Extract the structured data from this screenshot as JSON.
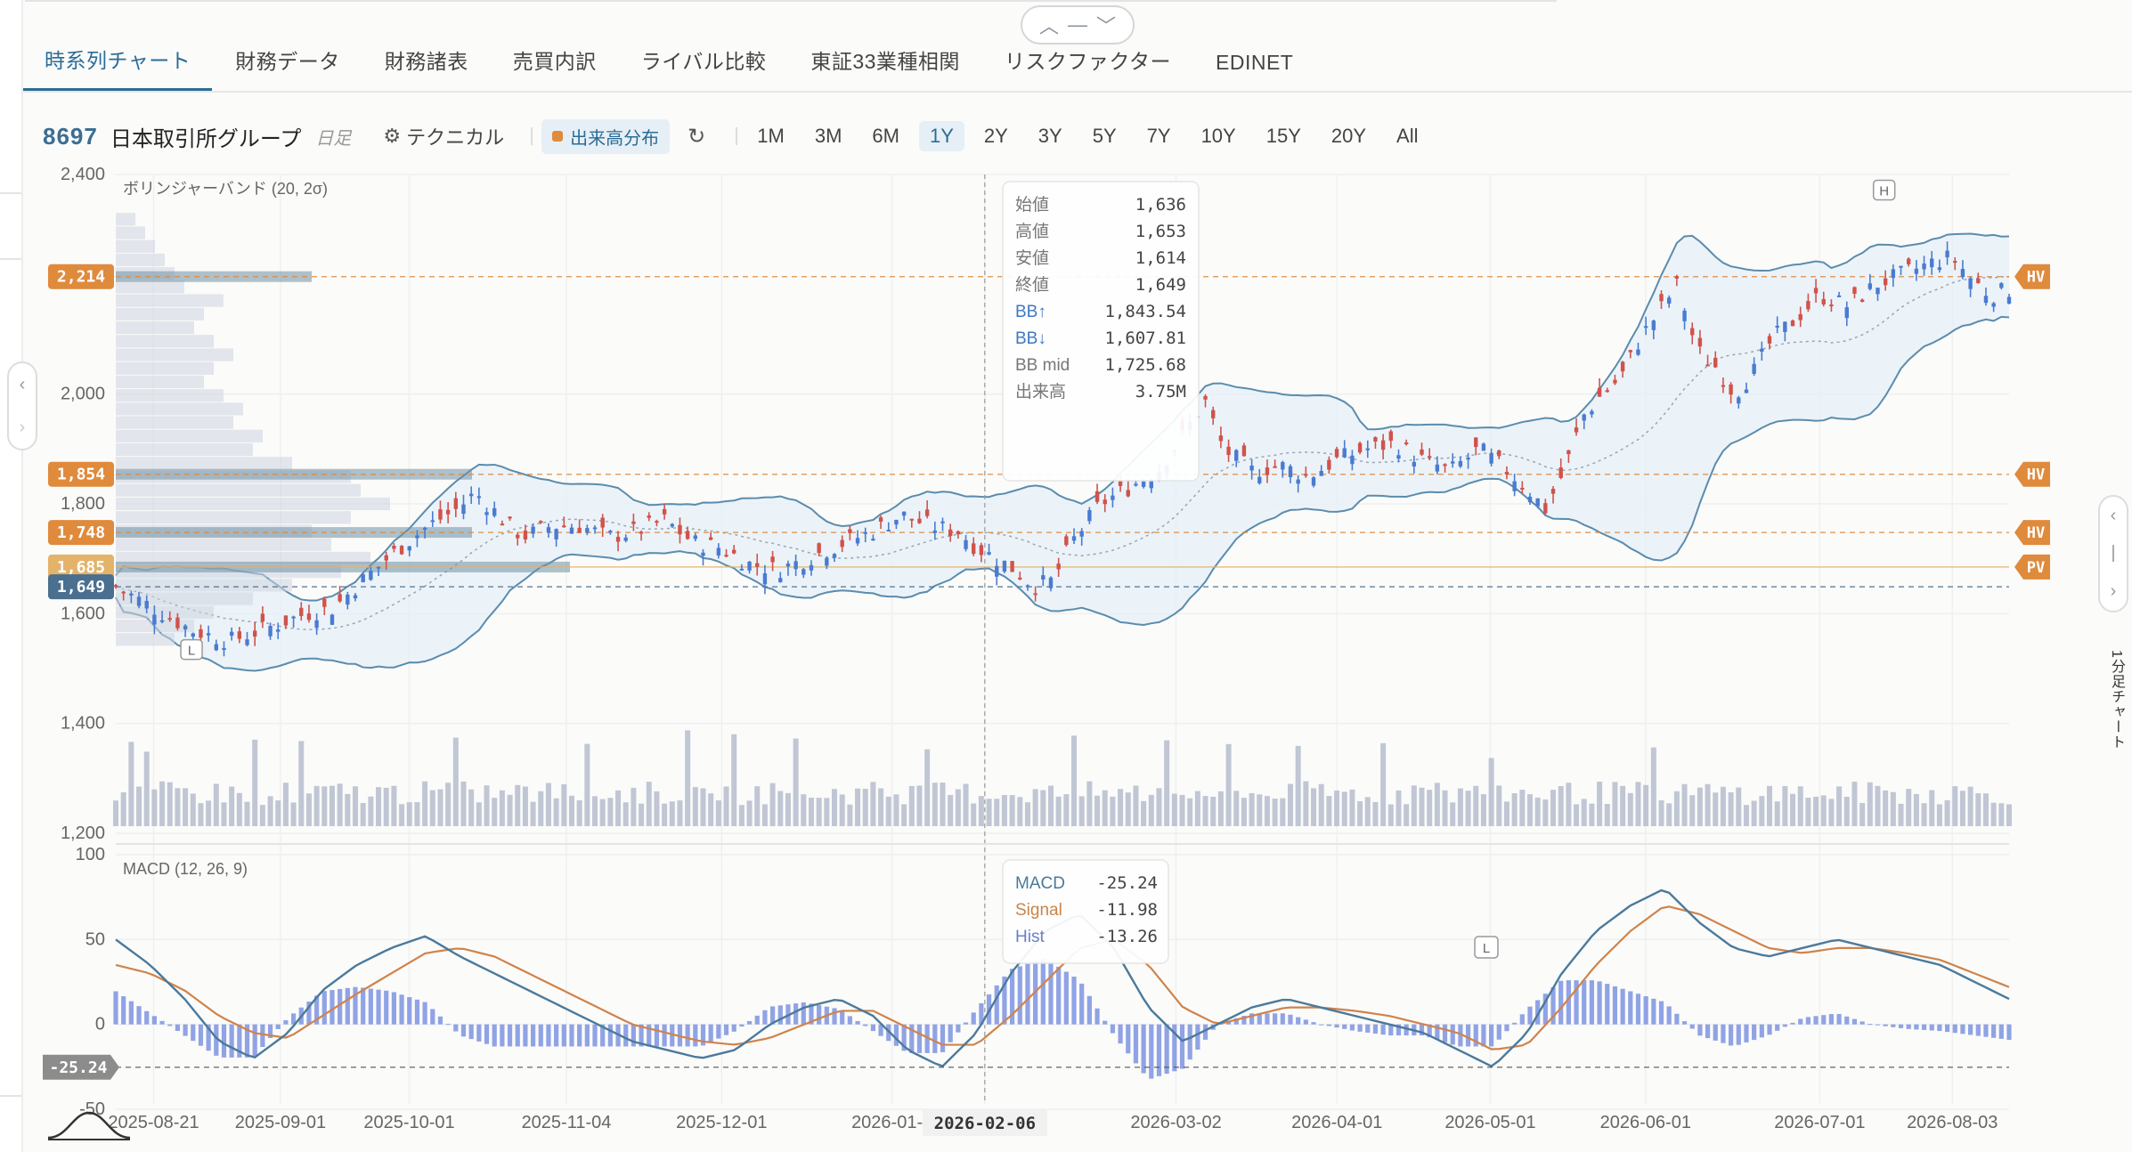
{
  "tabs": [
    {
      "label": "時系列チャート",
      "active": true
    },
    {
      "label": "財務データ",
      "active": false
    },
    {
      "label": "財務諸表",
      "active": false
    },
    {
      "label": "売買内訳",
      "active": false
    },
    {
      "label": "ライバル比較",
      "active": false
    },
    {
      "label": "東証33業種相関",
      "active": false
    },
    {
      "label": "リスクファクター",
      "active": false
    },
    {
      "label": "EDINET",
      "active": false
    }
  ],
  "toolbar": {
    "ticker_code": "8697",
    "ticker_name": "日本取引所グループ",
    "period": "日足",
    "technical_label": "テクニカル",
    "volume_profile_label": "出来高分布",
    "ranges": [
      "1M",
      "3M",
      "6M",
      "1Y",
      "2Y",
      "3Y",
      "5Y",
      "7Y",
      "10Y",
      "15Y",
      "20Y",
      "All"
    ],
    "active_range": "1Y"
  },
  "side_label": "1分足チャート",
  "icons": {
    "reset": "reset-icon",
    "gear": "gear-icon",
    "collapse": "chevron-up-icon",
    "expand": "chevron-down-icon"
  },
  "colors": {
    "accent": "#2a6c97",
    "up": "#4a7bd0",
    "down": "#d0534b",
    "band": "#5b8cad",
    "band_fill": "#e6f0f8",
    "volume": "#b5bccc",
    "macd": "#4a7a9c",
    "signal": "#d0834a",
    "hist": "#7c93e0",
    "hv": "#e08a3c",
    "current": "#4a6f8f",
    "low_tag": "#8c8c8c"
  },
  "chart_data": [
    {
      "type": "candlestick",
      "title": "ボリンジャーバンド (20, 2σ)",
      "ylim": [
        1200,
        2400
      ],
      "yticks": [
        "2,400",
        "2,000",
        "1,800",
        "1,600",
        "1,400",
        "1,200"
      ],
      "xticks": [
        "2025-08-21",
        "2025-09-01",
        "2025-10-01",
        "2025-11-04",
        "2025-12-01",
        "2026-01-0",
        "2026-02-06",
        "2026-03-02",
        "2026-04-01",
        "2026-05-01",
        "2026-06-01",
        "2026-07-01",
        "2026-08-03"
      ],
      "x_positions": [
        0.02,
        0.087,
        0.155,
        0.238,
        0.32,
        0.41,
        0.459,
        0.56,
        0.645,
        0.726,
        0.808,
        0.9,
        0.97
      ],
      "anchors": [
        [
          0.0,
          1650
        ],
        [
          0.015,
          1620
        ],
        [
          0.04,
          1570
        ],
        [
          0.06,
          1550
        ],
        [
          0.085,
          1580
        ],
        [
          0.1,
          1600
        ],
        [
          0.115,
          1610
        ],
        [
          0.13,
          1660
        ],
        [
          0.15,
          1720
        ],
        [
          0.165,
          1760
        ],
        [
          0.18,
          1790
        ],
        [
          0.19,
          1820
        ],
        [
          0.205,
          1770
        ],
        [
          0.215,
          1740
        ],
        [
          0.23,
          1760
        ],
        [
          0.245,
          1760
        ],
        [
          0.26,
          1740
        ],
        [
          0.275,
          1750
        ],
        [
          0.29,
          1770
        ],
        [
          0.305,
          1730
        ],
        [
          0.32,
          1720
        ],
        [
          0.335,
          1690
        ],
        [
          0.35,
          1680
        ],
        [
          0.365,
          1700
        ],
        [
          0.385,
          1730
        ],
        [
          0.4,
          1750
        ],
        [
          0.415,
          1780
        ],
        [
          0.43,
          1760
        ],
        [
          0.445,
          1750
        ],
        [
          0.455,
          1720
        ],
        [
          0.465,
          1700
        ],
        [
          0.475,
          1680
        ],
        [
          0.485,
          1650
        ],
        [
          0.495,
          1660
        ],
        [
          0.505,
          1730
        ],
        [
          0.52,
          1800
        ],
        [
          0.535,
          1830
        ],
        [
          0.55,
          1860
        ],
        [
          0.565,
          1930
        ],
        [
          0.575,
          1990
        ],
        [
          0.585,
          1900
        ],
        [
          0.6,
          1860
        ],
        [
          0.615,
          1870
        ],
        [
          0.63,
          1850
        ],
        [
          0.645,
          1880
        ],
        [
          0.66,
          1900
        ],
        [
          0.675,
          1910
        ],
        [
          0.69,
          1880
        ],
        [
          0.705,
          1860
        ],
        [
          0.72,
          1900
        ],
        [
          0.735,
          1860
        ],
        [
          0.745,
          1830
        ],
        [
          0.755,
          1790
        ],
        [
          0.765,
          1860
        ],
        [
          0.775,
          1960
        ],
        [
          0.785,
          2000
        ],
        [
          0.795,
          2030
        ],
        [
          0.805,
          2100
        ],
        [
          0.815,
          2150
        ],
        [
          0.825,
          2200
        ],
        [
          0.835,
          2080
        ],
        [
          0.845,
          2050
        ],
        [
          0.855,
          2000
        ],
        [
          0.865,
          2040
        ],
        [
          0.875,
          2100
        ],
        [
          0.885,
          2130
        ],
        [
          0.9,
          2180
        ],
        [
          0.915,
          2160
        ],
        [
          0.93,
          2200
        ],
        [
          0.945,
          2220
        ],
        [
          0.96,
          2240
        ],
        [
          0.97,
          2250
        ],
        [
          0.98,
          2210
        ],
        [
          0.99,
          2180
        ],
        [
          1.0,
          2190
        ]
      ],
      "tooltip": {
        "date": "2026-02-06",
        "rows": [
          {
            "label": "始値",
            "value": "1,636"
          },
          {
            "label": "高値",
            "value": "1,653"
          },
          {
            "label": "安値",
            "value": "1,614"
          },
          {
            "label": "終値",
            "value": "1,649"
          },
          {
            "label": "BB↑",
            "value": "1,843.54"
          },
          {
            "label": "BB↓",
            "value": "1,607.81"
          },
          {
            "label": "BB mid",
            "value": "1,725.68"
          },
          {
            "label": "出来高",
            "value": "3.75M"
          }
        ]
      },
      "price_tags": [
        {
          "label": "2,214",
          "value": 2214,
          "kind": "hv"
        },
        {
          "label": "1,854",
          "value": 1854,
          "kind": "hv"
        },
        {
          "label": "1,748",
          "value": 1748,
          "kind": "hv"
        },
        {
          "label": "1,685",
          "value": 1685,
          "kind": "pv"
        },
        {
          "label": "1,649",
          "value": 1649,
          "kind": "current"
        }
      ],
      "right_tags": [
        {
          "label": "HV",
          "value": 2214
        },
        {
          "label": "HV",
          "value": 1854
        },
        {
          "label": "HV",
          "value": 1748
        },
        {
          "label": "PV",
          "value": 1685
        }
      ],
      "markers": [
        {
          "label": "H",
          "x": 0.934,
          "value": 2370
        },
        {
          "label": "L",
          "x": 0.04,
          "value": 1533
        }
      ],
      "volume_profile": [
        0.02,
        0.03,
        0.04,
        0.05,
        0.06,
        0.07,
        0.11,
        0.09,
        0.08,
        0.1,
        0.12,
        0.1,
        0.09,
        0.11,
        0.13,
        0.12,
        0.15,
        0.14,
        0.18,
        0.24,
        0.25,
        0.28,
        0.24,
        0.2,
        0.22,
        0.26,
        0.23,
        0.18,
        0.14,
        0.1,
        0.08,
        0.06
      ]
    },
    {
      "type": "bar",
      "title": "出来高",
      "note": "volume bars, relative heights"
    },
    {
      "type": "line",
      "title": "MACD (12, 26, 9)",
      "ylim": [
        -50,
        100
      ],
      "yticks": [
        "100",
        "50",
        "0",
        "-50"
      ],
      "series": [
        {
          "name": "MACD",
          "values": [
            50,
            35,
            15,
            -10,
            -20,
            -5,
            20,
            35,
            45,
            52,
            40,
            30,
            20,
            10,
            0,
            -10,
            -15,
            -20,
            -15,
            0,
            10,
            15,
            5,
            -15,
            -25,
            -5,
            30,
            55,
            65,
            45,
            10,
            -10,
            0,
            10,
            15,
            10,
            5,
            0,
            -5,
            -15,
            -25,
            -5,
            30,
            55,
            70,
            80,
            60,
            45,
            40,
            45,
            50,
            45,
            40,
            35,
            25,
            15
          ]
        },
        {
          "name": "Signal",
          "values": [
            35,
            30,
            20,
            5,
            -5,
            -8,
            5,
            18,
            30,
            42,
            45,
            40,
            30,
            20,
            10,
            0,
            -5,
            -10,
            -12,
            -8,
            0,
            8,
            8,
            -2,
            -12,
            -12,
            5,
            25,
            45,
            50,
            35,
            10,
            0,
            5,
            10,
            10,
            8,
            5,
            0,
            -5,
            -15,
            -12,
            10,
            35,
            55,
            70,
            65,
            55,
            45,
            42,
            45,
            45,
            42,
            38,
            30,
            22
          ]
        }
      ],
      "tooltip": {
        "rows": [
          {
            "label": "MACD",
            "value": "-25.24"
          },
          {
            "label": "Signal",
            "value": "-11.98"
          },
          {
            "label": "Hist",
            "value": "-13.26"
          }
        ]
      },
      "current_tag": "-25.24",
      "marker": "L"
    }
  ]
}
